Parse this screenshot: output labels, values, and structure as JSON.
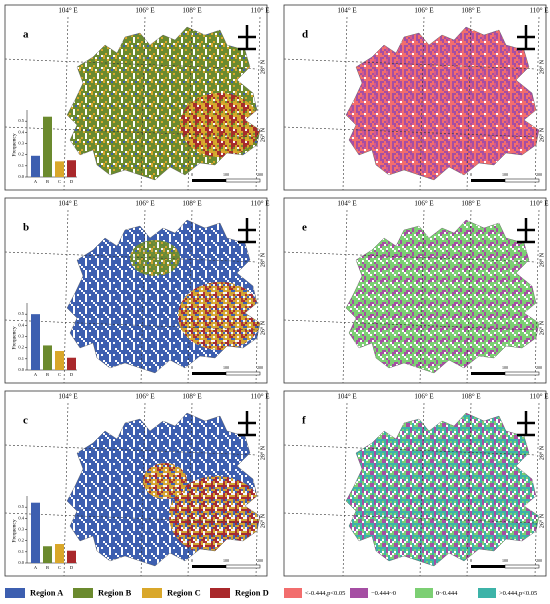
{
  "panel_labels": [
    "a",
    "b",
    "c",
    "d",
    "e",
    "f"
  ],
  "longitude_labels": [
    "104° E",
    "106° E",
    "108° E",
    "110° E"
  ],
  "latitude_labels": [
    "28° N",
    "26° N"
  ],
  "scale_labels": [
    "0",
    "100",
    "200"
  ],
  "chart_data": [
    {
      "type": "bar",
      "ylabel": "Frequency",
      "categories": [
        "A",
        "B",
        "C",
        "D"
      ],
      "values": [
        0.19,
        0.54,
        0.14,
        0.15
      ],
      "colors": [
        "#3d5fb0",
        "#6b8a2e",
        "#d9a72a",
        "#a9282b"
      ],
      "ylim": [
        0,
        0.6
      ],
      "yticks": [
        {
          "value": 0,
          "label": "0.0"
        },
        0.1,
        0.2,
        0.3,
        0.4,
        0.5
      ]
    },
    {
      "type": "bar",
      "ylabel": "Frequency",
      "categories": [
        "A",
        "B",
        "C",
        "D"
      ],
      "values": [
        0.5,
        0.22,
        0.17,
        0.11
      ],
      "colors": [
        "#3d5fb0",
        "#6b8a2e",
        "#d9a72a",
        "#a9282b"
      ],
      "ylim": [
        0,
        0.6
      ],
      "yticks": [
        {
          "value": 0,
          "label": "0.0"
        },
        0.1,
        0.2,
        0.3,
        0.4,
        0.5
      ]
    },
    {
      "type": "bar",
      "ylabel": "Frequency",
      "categories": [
        "A",
        "B",
        "C",
        "D"
      ],
      "values": [
        0.54,
        0.15,
        0.17,
        0.11
      ],
      "colors": [
        "#3d5fb0",
        "#6b8a2e",
        "#d9a72a",
        "#a9282b"
      ],
      "ylim": [
        0,
        0.6
      ],
      "yticks": [
        {
          "value": 0,
          "label": "0.0"
        },
        0.1,
        0.2,
        0.3,
        0.4,
        0.5
      ]
    }
  ],
  "legend_left": [
    {
      "label": "Region A",
      "color": "#3d5fb0"
    },
    {
      "label": "Region B",
      "color": "#6b8a2e"
    },
    {
      "label": "Region C",
      "color": "#d9a72a"
    },
    {
      "label": "Region D",
      "color": "#a9282b"
    }
  ],
  "legend_right": [
    {
      "label": "<-0.444,p<0.05",
      "color": "#f26d6d"
    },
    {
      "label": "−0.444~0",
      "color": "#a54ea3"
    },
    {
      "label": "0~0.444",
      "color": "#7ccf73"
    },
    {
      "label": ">0.444,p<0.05",
      "color": "#3db3a8"
    }
  ]
}
